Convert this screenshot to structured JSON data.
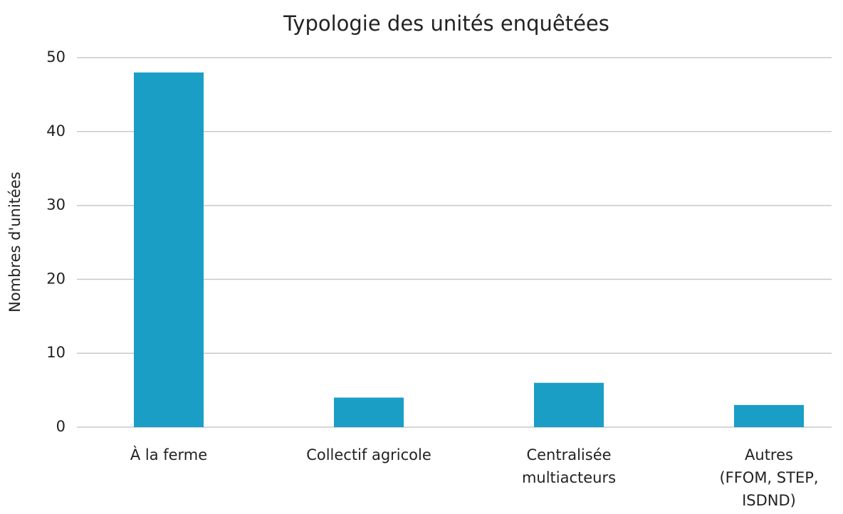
{
  "chart_data": {
    "type": "bar",
    "title": "Typologie des unités enquêtées",
    "ylabel": "Nombres d'unitées",
    "categories": [
      "À la ferme",
      "Collectif agricole",
      "Centralisée\nmultiacteurs",
      "Autres\n(FFOM, STEP,\nISDND)"
    ],
    "values": [
      48,
      4,
      6,
      3
    ],
    "color": "#1a9ec6",
    "ylim": [
      0,
      50
    ],
    "yticks": [
      0,
      10,
      20,
      30,
      40,
      50
    ],
    "grid": true
  }
}
